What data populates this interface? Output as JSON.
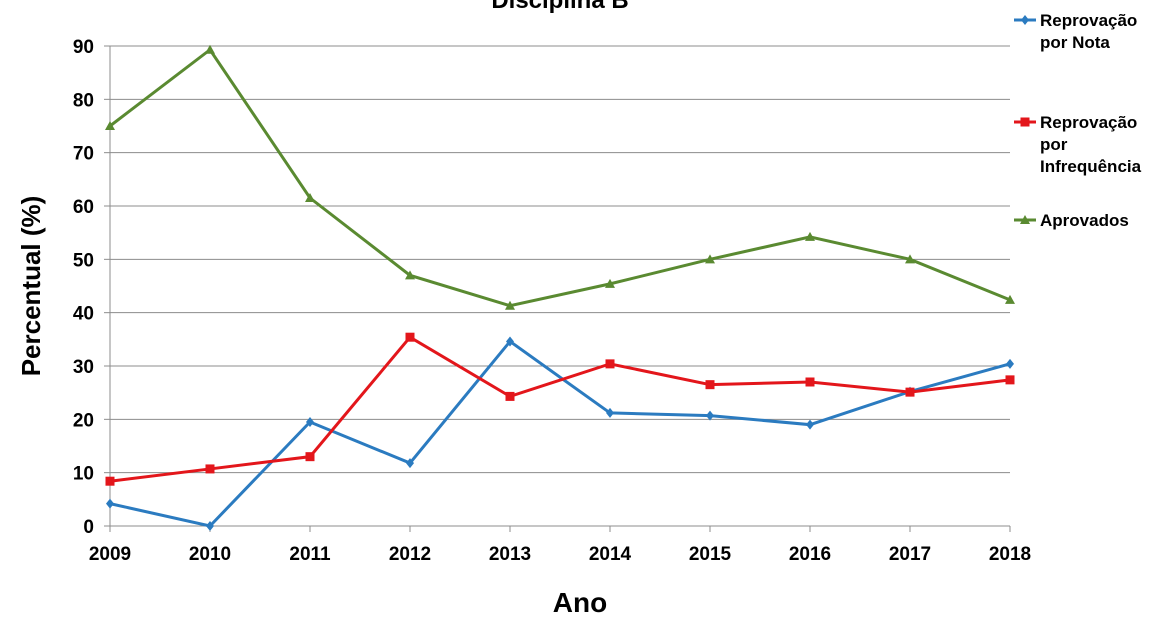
{
  "chart_data": {
    "type": "line",
    "title": "Disciplina B",
    "x_label": "Ano",
    "y_label": "Percentual (%)",
    "categories": [
      "2009",
      "2010",
      "2011",
      "2012",
      "2013",
      "2014",
      "2015",
      "2016",
      "2017",
      "2018"
    ],
    "series": [
      {
        "name": "Reprovação por Nota",
        "color": "#2b7bc0",
        "marker": "diamond",
        "values": [
          4.2,
          0,
          19.5,
          11.8,
          34.6,
          21.2,
          20.7,
          19,
          25.2,
          30.4
        ]
      },
      {
        "name": "Reprovação por Infrequência",
        "color": "#e3161b",
        "marker": "square",
        "values": [
          8.4,
          10.7,
          13,
          35.4,
          24.3,
          30.4,
          26.5,
          27,
          25.1,
          27.4
        ]
      },
      {
        "name": "Aprovados",
        "color": "#5a8a31",
        "marker": "triangle",
        "values": [
          75,
          89.3,
          61.5,
          47,
          41.3,
          45.4,
          50,
          54.2,
          50,
          42.4
        ]
      }
    ],
    "ylim": [
      0,
      90
    ],
    "yticks": [
      0,
      10,
      20,
      30,
      40,
      50,
      60,
      70,
      80,
      90
    ],
    "grid": true,
    "legend": "right"
  }
}
